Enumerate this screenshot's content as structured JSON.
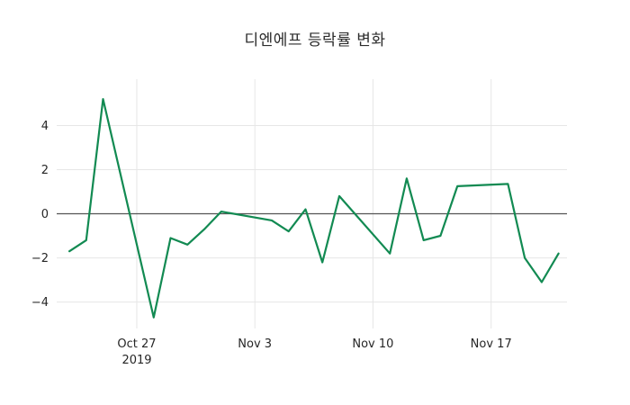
{
  "page": {
    "background": "#ffffff"
  },
  "chart_data": {
    "type": "line",
    "title": "디엔에프 등락률 변화",
    "xlabel": "",
    "ylabel": "",
    "legend": "none",
    "grid": true,
    "x": [
      "2019-10-23",
      "2019-10-24",
      "2019-10-25",
      "2019-10-28",
      "2019-10-29",
      "2019-10-30",
      "2019-10-31",
      "2019-11-01",
      "2019-11-04",
      "2019-11-05",
      "2019-11-06",
      "2019-11-07",
      "2019-11-08",
      "2019-11-11",
      "2019-11-12",
      "2019-11-13",
      "2019-11-14",
      "2019-11-15",
      "2019-11-18",
      "2019-11-19",
      "2019-11-20",
      "2019-11-21"
    ],
    "values": [
      -1.7,
      -1.2,
      5.2,
      -4.7,
      -1.1,
      -1.4,
      -0.7,
      0.1,
      -0.3,
      -0.8,
      0.2,
      -2.2,
      0.8,
      -1.8,
      1.6,
      -1.2,
      -1.0,
      1.25,
      1.35,
      -2.0,
      -3.1,
      -1.8
    ],
    "yticks": [
      4,
      2,
      0,
      -2,
      -4
    ],
    "xticks": [
      {
        "date": "2019-10-27",
        "label": "Oct 27",
        "sublabel": "2019"
      },
      {
        "date": "2019-11-03",
        "label": "Nov 3"
      },
      {
        "date": "2019-11-10",
        "label": "Nov 10"
      },
      {
        "date": "2019-11-17",
        "label": "Nov 17"
      }
    ],
    "ylim": [
      -5.2,
      6.1
    ],
    "xlim_days": [
      -0.75,
      29.5
    ],
    "colors": {
      "line": "#128a52",
      "grid": "#e6e6e6",
      "zeroline": "#545454",
      "text": "#262626",
      "background": "#ffffff"
    }
  }
}
